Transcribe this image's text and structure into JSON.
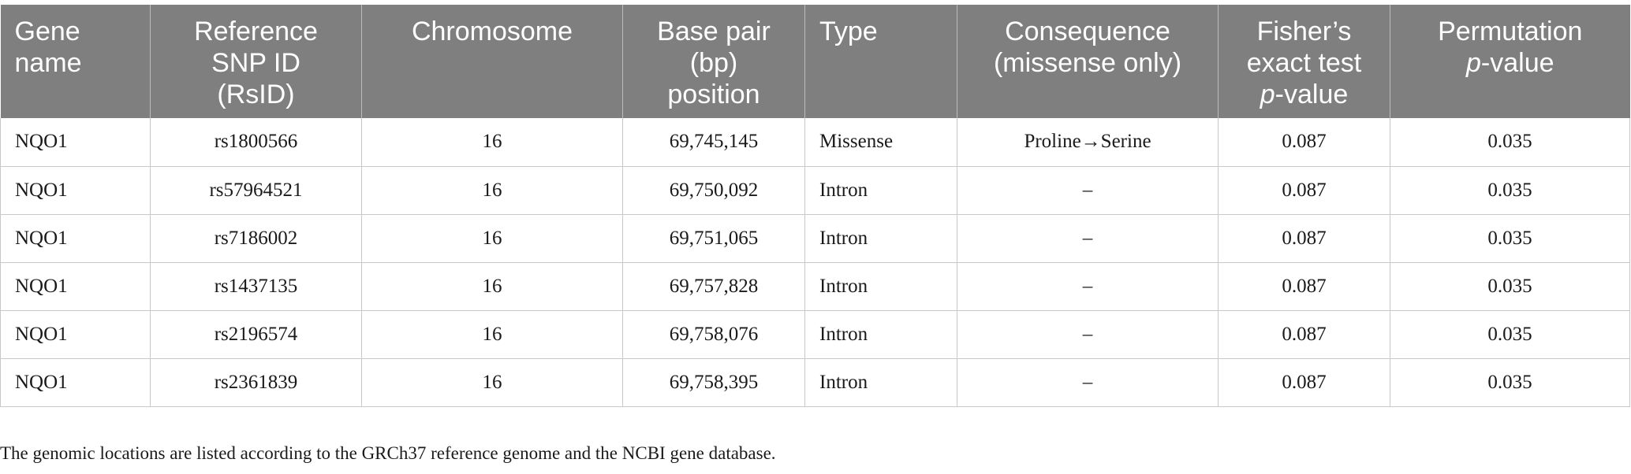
{
  "table": {
    "headers": [
      {
        "lines": [
          "Gene",
          "name"
        ],
        "align": "left"
      },
      {
        "lines": [
          "Reference",
          "SNP ID",
          "(RsID)"
        ],
        "align": "center"
      },
      {
        "lines": [
          "Chromosome"
        ],
        "align": "center"
      },
      {
        "lines": [
          "Base pair",
          "(bp)",
          "position"
        ],
        "align": "center"
      },
      {
        "lines": [
          "Type"
        ],
        "align": "left"
      },
      {
        "lines": [
          "Consequence",
          "(missense only)"
        ],
        "align": "center"
      },
      {
        "lines": [
          "Fisher’s",
          "exact test",
          "p-value"
        ],
        "align": "center"
      },
      {
        "lines": [
          "Permutation",
          "p-value"
        ],
        "align": "center"
      }
    ],
    "rows": [
      [
        "NQO1",
        "rs1800566",
        "16",
        "69,745,145",
        "Missense",
        "Proline→Serine",
        "0.087",
        "0.035"
      ],
      [
        "NQO1",
        "rs57964521",
        "16",
        "69,750,092",
        "Intron",
        "–",
        "0.087",
        "0.035"
      ],
      [
        "NQO1",
        "rs7186002",
        "16",
        "69,751,065",
        "Intron",
        "–",
        "0.087",
        "0.035"
      ],
      [
        "NQO1",
        "rs1437135",
        "16",
        "69,757,828",
        "Intron",
        "–",
        "0.087",
        "0.035"
      ],
      [
        "NQO1",
        "rs2196574",
        "16",
        "69,758,076",
        "Intron",
        "–",
        "0.087",
        "0.035"
      ],
      [
        "NQO1",
        "rs2361839",
        "16",
        "69,758,395",
        "Intron",
        "–",
        "0.087",
        "0.035"
      ]
    ]
  },
  "footnote": "The genomic locations are listed according to the GRCh37 reference genome and the NCBI gene database.",
  "colors": {
    "header_bg": "#7f7f7f",
    "header_text": "#ffffff",
    "grid": "#c8c8c8"
  }
}
